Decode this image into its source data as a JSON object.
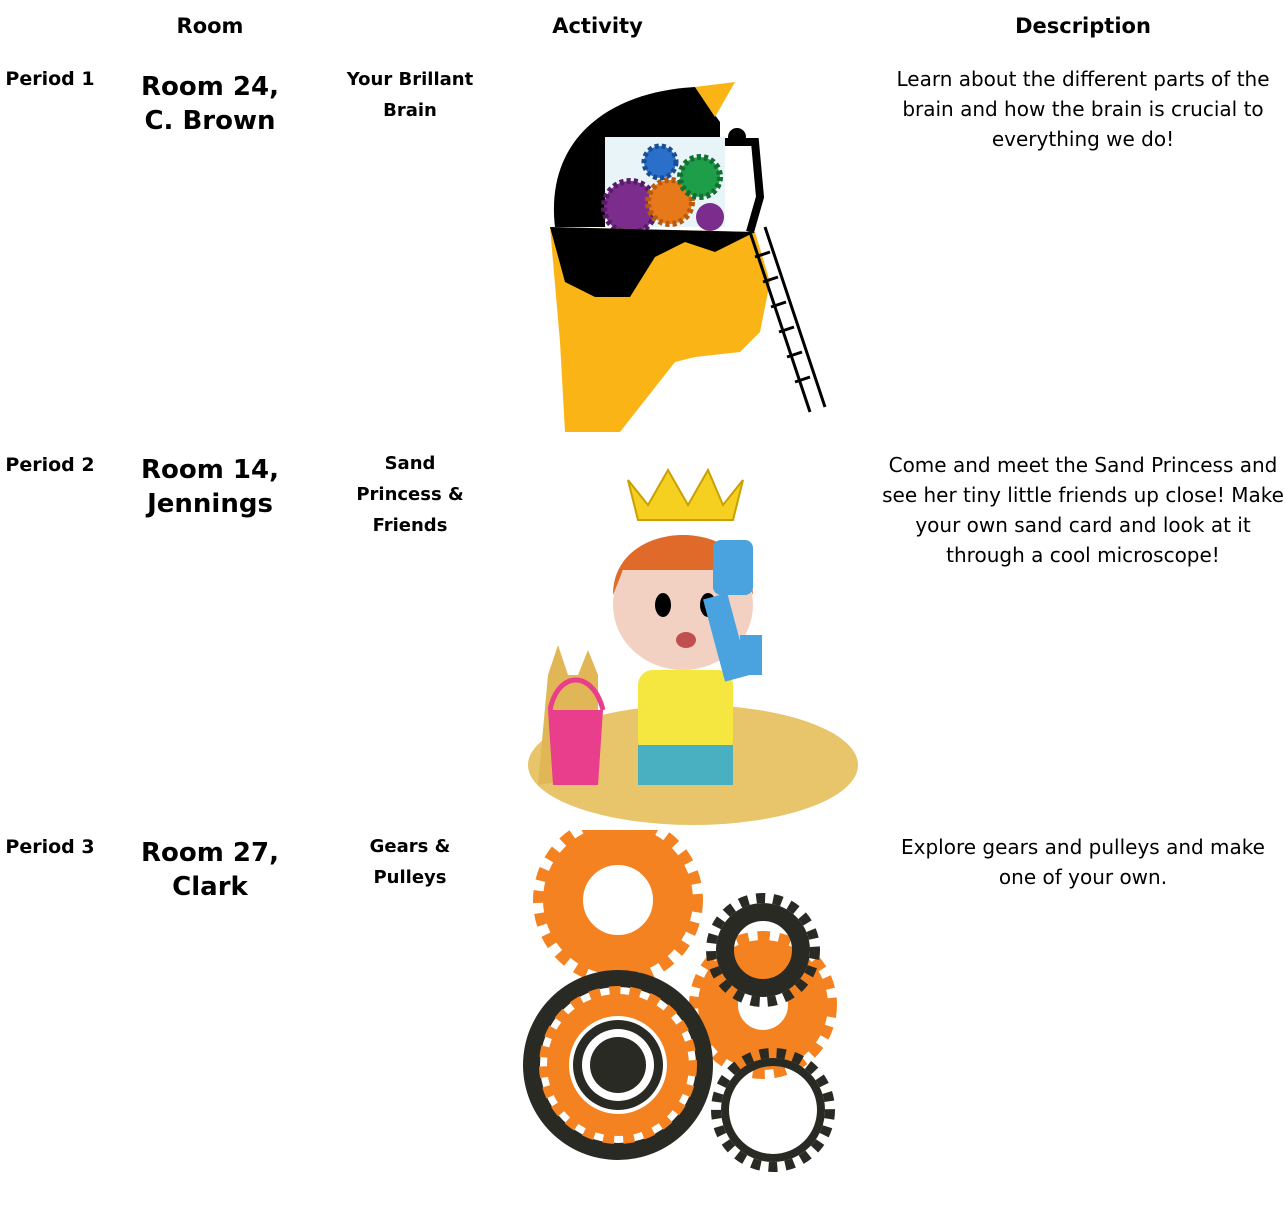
{
  "header": {
    "room": "Room",
    "activity": "Activity",
    "description": "Description"
  },
  "rows": [
    {
      "period": "Period 1",
      "room": "Room 24, C. Brown",
      "activity": "Your Brillant Brain",
      "description": "Learn about the different parts of the brain and how the brain is crucial to everything we do!"
    },
    {
      "period": "Period 2",
      "room": "Room 14, Jennings",
      "activity": "Sand Princess & Friends",
      "description": "Come and meet the Sand Princess and see her tiny little friends up close! Make your own sand card and look at it through a cool microscope!"
    },
    {
      "period": "Period 3",
      "room": "Room 27, Clark",
      "activity": "Gears & Pulleys",
      "description": "Explore gears and pulleys and make one of your own."
    }
  ]
}
